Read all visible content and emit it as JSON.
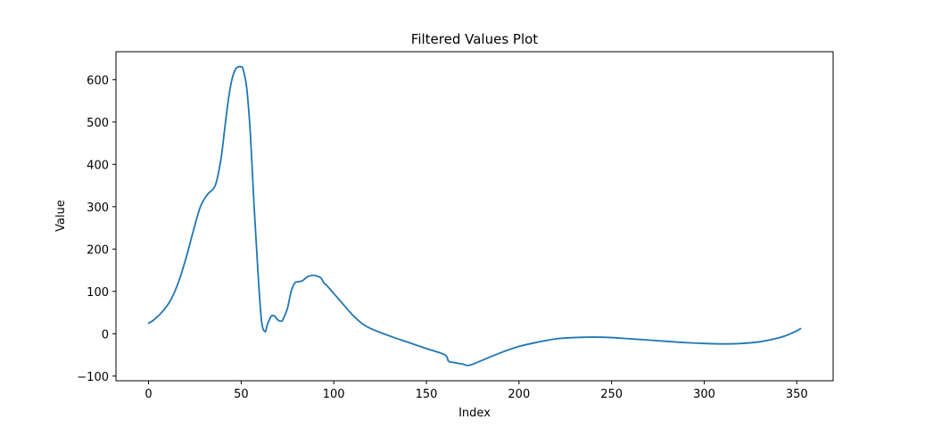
{
  "chart_data": {
    "type": "line",
    "title": "Filtered Values Plot",
    "xlabel": "Index",
    "ylabel": "Value",
    "xlim": [
      -17.6,
      369.6
    ],
    "ylim": [
      -111,
      666
    ],
    "xticks": [
      0,
      50,
      100,
      150,
      200,
      250,
      300,
      350
    ],
    "yticks": [
      -100,
      0,
      100,
      200,
      300,
      400,
      500,
      600
    ],
    "grid": false,
    "line_color": "#1f77b4",
    "series": [
      {
        "x": [
          0,
          3,
          8,
          12,
          16,
          20,
          24,
          28,
          32,
          36,
          39,
          41,
          43,
          45,
          47,
          49,
          50,
          51,
          53,
          55,
          57,
          59,
          61,
          63,
          64,
          66,
          67,
          68,
          70,
          72,
          73,
          75,
          77,
          79,
          81,
          83,
          86,
          89,
          91,
          93,
          95,
          96,
          100,
          105,
          110,
          115,
          120,
          130,
          140,
          150,
          160,
          162,
          165,
          170,
          172,
          175,
          180,
          190,
          200,
          210,
          220,
          230,
          240,
          250,
          260,
          270,
          280,
          290,
          300,
          310,
          320,
          330,
          340,
          345,
          350,
          352
        ],
        "y": [
          25,
          33,
          55,
          80,
          120,
          175,
          240,
          300,
          330,
          350,
          410,
          480,
          550,
          600,
          625,
          631,
          630,
          625,
          580,
          470,
          300,
          150,
          30,
          5,
          20,
          40,
          43,
          42,
          32,
          30,
          38,
          60,
          100,
          120,
          123,
          125,
          135,
          138,
          136,
          132,
          118,
          115,
          95,
          70,
          45,
          25,
          12,
          -5,
          -20,
          -35,
          -50,
          -65,
          -68,
          -72,
          -75,
          -72,
          -63,
          -45,
          -30,
          -20,
          -12,
          -9,
          -8,
          -9,
          -12,
          -15,
          -18,
          -21,
          -23,
          -24,
          -23,
          -19,
          -10,
          -3,
          7,
          12
        ]
      }
    ]
  }
}
